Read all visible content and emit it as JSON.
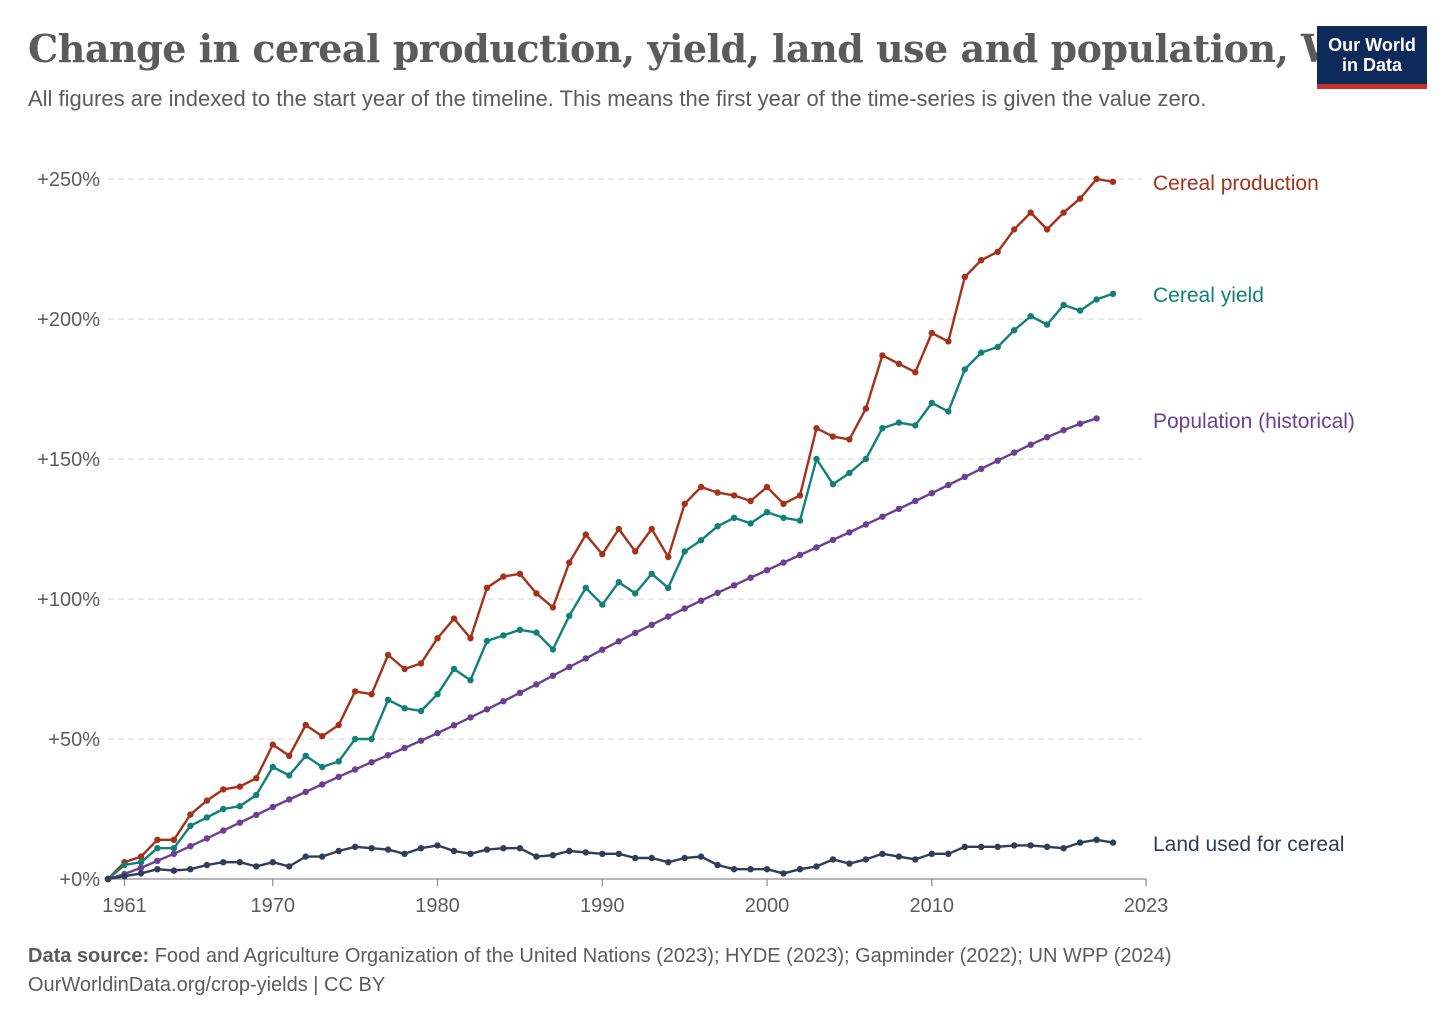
{
  "title": "Change in cereal production, yield, land use and population, World",
  "subtitle": "All figures are indexed to the start year of the timeline. This means the first year of the time-series is given the value zero.",
  "logo": {
    "line1": "Our World",
    "line2": "in Data"
  },
  "footer": {
    "source_label": "Data source:",
    "source_text": "Food and Agriculture Organization of the United Nations (2023); HYDE (2023); Gapminder (2022); UN WPP (2024)",
    "url_text": "OurWorldinData.org/crop-yields | CC BY"
  },
  "chart_data": {
    "type": "line",
    "x": [
      1960,
      1961,
      1962,
      1963,
      1964,
      1965,
      1966,
      1967,
      1968,
      1969,
      1970,
      1971,
      1972,
      1973,
      1974,
      1975,
      1976,
      1977,
      1978,
      1979,
      1980,
      1981,
      1982,
      1983,
      1984,
      1985,
      1986,
      1987,
      1988,
      1989,
      1990,
      1991,
      1992,
      1993,
      1994,
      1995,
      1996,
      1997,
      1998,
      1999,
      2000,
      2001,
      2002,
      2003,
      2004,
      2005,
      2006,
      2007,
      2008,
      2009,
      2010,
      2011,
      2012,
      2013,
      2014,
      2015,
      2016,
      2017,
      2018,
      2019,
      2020,
      2021,
      2022,
      2023
    ],
    "series": [
      {
        "name": "Cereal production",
        "color": "#a2331a",
        "values": [
          0,
          6,
          8,
          14,
          14,
          23,
          28,
          32,
          33,
          36,
          48,
          44,
          55,
          51,
          55,
          67,
          66,
          80,
          75,
          77,
          86,
          93,
          86,
          104,
          108,
          109,
          102,
          97,
          113,
          123,
          116,
          125,
          117,
          125,
          115,
          134,
          140,
          138,
          137,
          135,
          140,
          134,
          137,
          161,
          158,
          157,
          168,
          187,
          184,
          181,
          195,
          192,
          215,
          221,
          224,
          232,
          238,
          232,
          238,
          243,
          250,
          249,
          null,
          null
        ]
      },
      {
        "name": "Cereal yield",
        "color": "#12807a",
        "values": [
          0,
          5,
          6,
          11,
          11,
          19,
          22,
          25,
          26,
          30,
          40,
          37,
          44,
          40,
          42,
          50,
          50,
          64,
          61,
          60,
          66,
          75,
          71,
          85,
          87,
          89,
          88,
          82,
          94,
          104,
          98,
          106,
          102,
          109,
          104,
          117,
          121,
          126,
          129,
          127,
          131,
          129,
          128,
          150,
          141,
          145,
          150,
          161,
          163,
          162,
          170,
          167,
          182,
          188,
          190,
          196,
          201,
          198,
          205,
          203,
          207,
          209,
          null,
          null
        ]
      },
      {
        "name": "Population (historical)",
        "color": "#6d3e91",
        "values": [
          0,
          1.8,
          4,
          6.5,
          9,
          11.7,
          14.5,
          17.3,
          20.1,
          22.9,
          25.7,
          28.4,
          31.1,
          33.8,
          36.5,
          39.1,
          41.7,
          44.2,
          46.8,
          49.4,
          52.1,
          54.9,
          57.7,
          60.6,
          63.5,
          66.5,
          69.5,
          72.6,
          75.7,
          78.8,
          81.9,
          84.9,
          87.9,
          90.8,
          93.7,
          96.6,
          99.4,
          102.2,
          104.9,
          107.6,
          110.3,
          113,
          115.7,
          118.4,
          121.1,
          123.8,
          126.6,
          129.4,
          132.2,
          135,
          137.8,
          140.7,
          143.6,
          146.5,
          149.4,
          152.3,
          155.1,
          157.8,
          160.3,
          162.6,
          164.5,
          null,
          null,
          null
        ]
      },
      {
        "name": "Land used for cereal",
        "color": "#2f3e57",
        "values": [
          0,
          1,
          2,
          3.5,
          3,
          3.5,
          5,
          6,
          6,
          4.5,
          6,
          4.5,
          8,
          8,
          10,
          11.5,
          11,
          10.5,
          9,
          11,
          12,
          10,
          9,
          10.5,
          11,
          11,
          8,
          8.5,
          10,
          9.5,
          9,
          9,
          7.5,
          7.5,
          6,
          7.5,
          8,
          5,
          3.5,
          3.5,
          3.5,
          2,
          3.5,
          4.5,
          7,
          5.5,
          7,
          9,
          8,
          7,
          9,
          9,
          11.5,
          11.5,
          11.5,
          12,
          12,
          11.5,
          11,
          13,
          14,
          13,
          null,
          null
        ]
      }
    ],
    "x_ticks": [
      "1961",
      "1970",
      "1980",
      "1990",
      "2000",
      "2010",
      "2023"
    ],
    "y_ticks": [
      "+0%",
      "+50%",
      "+100%",
      "+150%",
      "+200%",
      "+250%"
    ],
    "ylim": [
      0,
      250
    ],
    "grid": "horizontal dashed",
    "legend": "right, labels at line ends"
  }
}
